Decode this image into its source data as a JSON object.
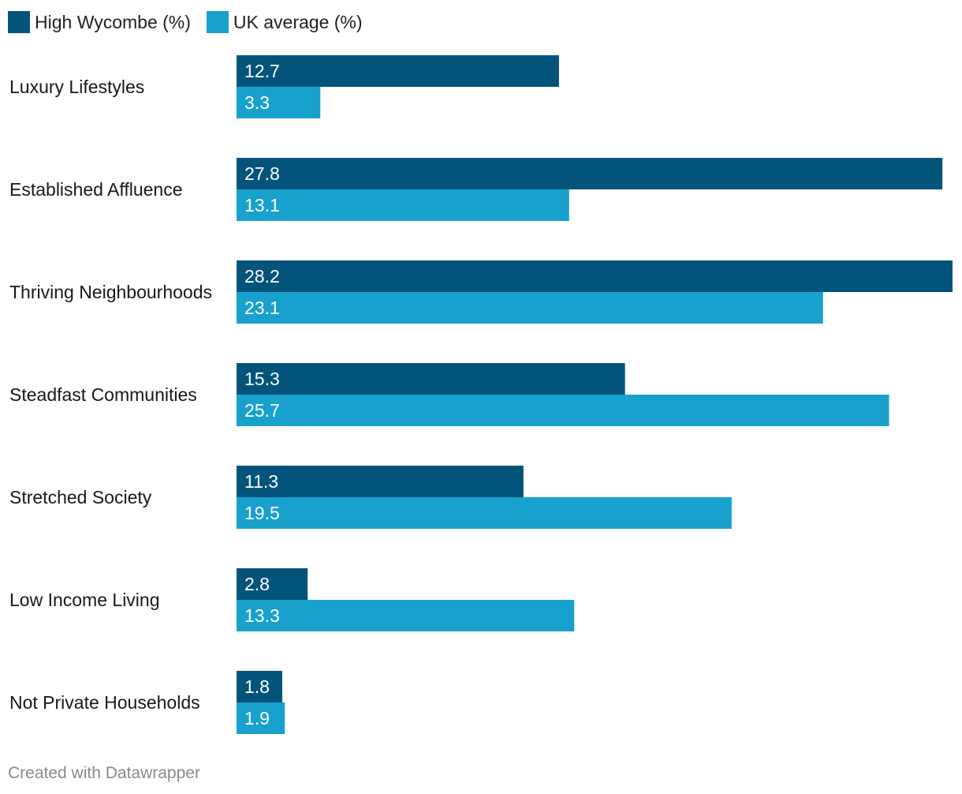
{
  "chart_data": {
    "type": "bar",
    "orientation": "horizontal",
    "title": "",
    "xlabel": "",
    "ylabel": "",
    "xlim": [
      0,
      28.2
    ],
    "grid": false,
    "legend_position": "top-left",
    "categories": [
      "Luxury Lifestyles",
      "Established Affluence",
      "Thriving Neighbourhoods",
      "Steadfast Communities",
      "Stretched Society",
      "Low Income Living",
      "Not Private Households"
    ],
    "series": [
      {
        "name": "High Wycombe (%)",
        "color": "#03547b",
        "values": [
          12.7,
          27.8,
          28.2,
          15.3,
          11.3,
          2.8,
          1.8
        ],
        "labels": [
          "12.7",
          "27.8",
          "28.2",
          "15.3",
          "11.3",
          "2.8",
          "1.8"
        ]
      },
      {
        "name": "UK average (%)",
        "color": "#18a1cd",
        "values": [
          3.3,
          13.1,
          23.1,
          25.7,
          19.5,
          13.3,
          1.9
        ],
        "labels": [
          "3.3",
          "13.1",
          "23.1",
          "25.7",
          "19.5",
          "13.3",
          "1.9"
        ]
      }
    ]
  },
  "legend": {
    "items": [
      {
        "label": "High Wycombe (%)",
        "color": "#03547b"
      },
      {
        "label": "UK average (%)",
        "color": "#18a1cd"
      }
    ]
  },
  "footer": {
    "text": "Created with Datawrapper"
  }
}
